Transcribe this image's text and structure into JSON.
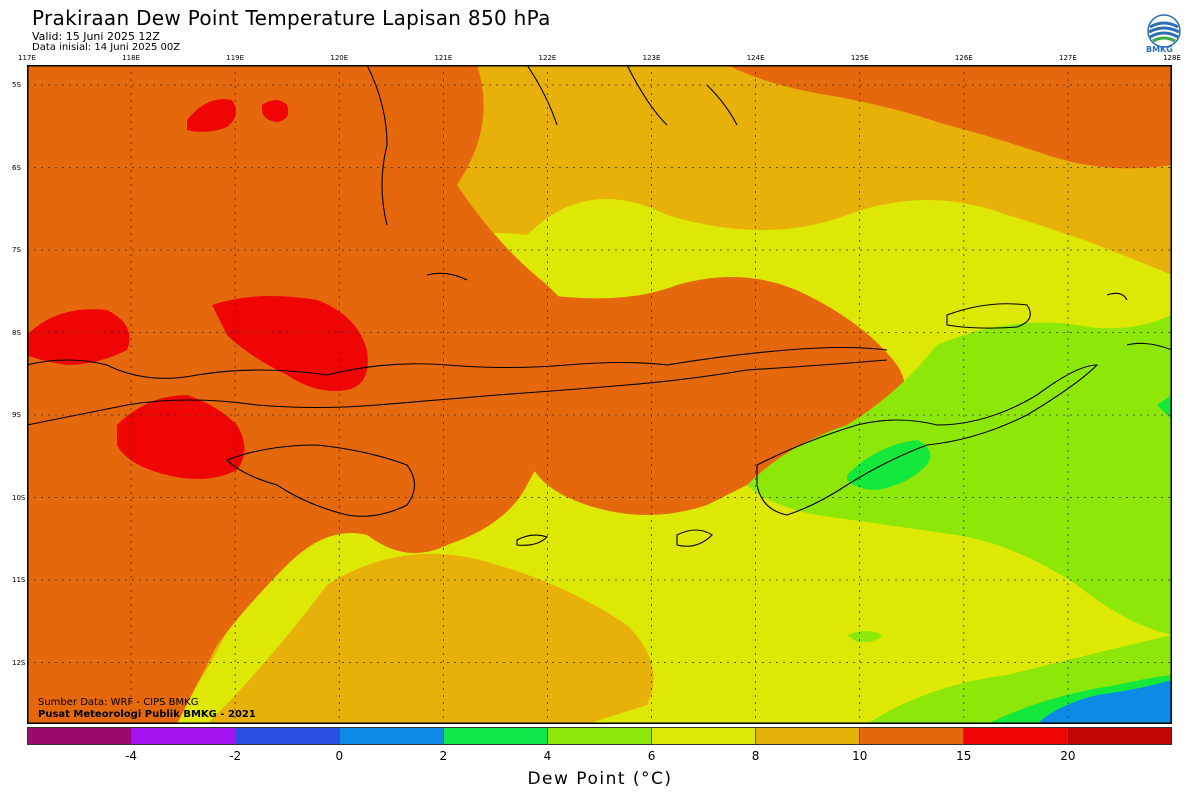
{
  "header": {
    "title": "Prakiraan Dew Point Temperature Lapisan 850 hPa",
    "valid": "Valid: 15 Juni 2025 12Z",
    "initial": "Data inisial: 14 Juni 2025 00Z",
    "logo_text": "BMKG"
  },
  "map": {
    "lon_labels": [
      "117E",
      "118E",
      "119E",
      "120E",
      "121E",
      "122E",
      "123E",
      "124E",
      "125E",
      "126E",
      "127E",
      "128E"
    ],
    "lat_labels": [
      "5S",
      "6S",
      "7S",
      "8S",
      "9S",
      "10S",
      "11S",
      "12S"
    ],
    "credit_source": "Sumber Data: WRF - CIPS BMKG",
    "credit_org": "Pusat Meteorologi Publik BMKG - 2021",
    "field_colors": {
      "bg": "#dde805",
      "orange": "#e6680d",
      "amber": "#e8b10a",
      "red": "#f00505",
      "green": "#8de80a",
      "bright_green": "#14e83a",
      "blue": "#0d8ae6"
    }
  },
  "colorbar": {
    "colors": [
      "#9b0a6e",
      "#a514f0",
      "#2b4fe0",
      "#0d8ae6",
      "#0ee84a",
      "#8de80a",
      "#dde805",
      "#e8b10a",
      "#e6680d",
      "#f00505",
      "#c00505"
    ],
    "ticks": [
      "-4",
      "-2",
      "0",
      "2",
      "4",
      "6",
      "8",
      "10",
      "15",
      "20"
    ],
    "title": "Dew Point (°C)"
  }
}
